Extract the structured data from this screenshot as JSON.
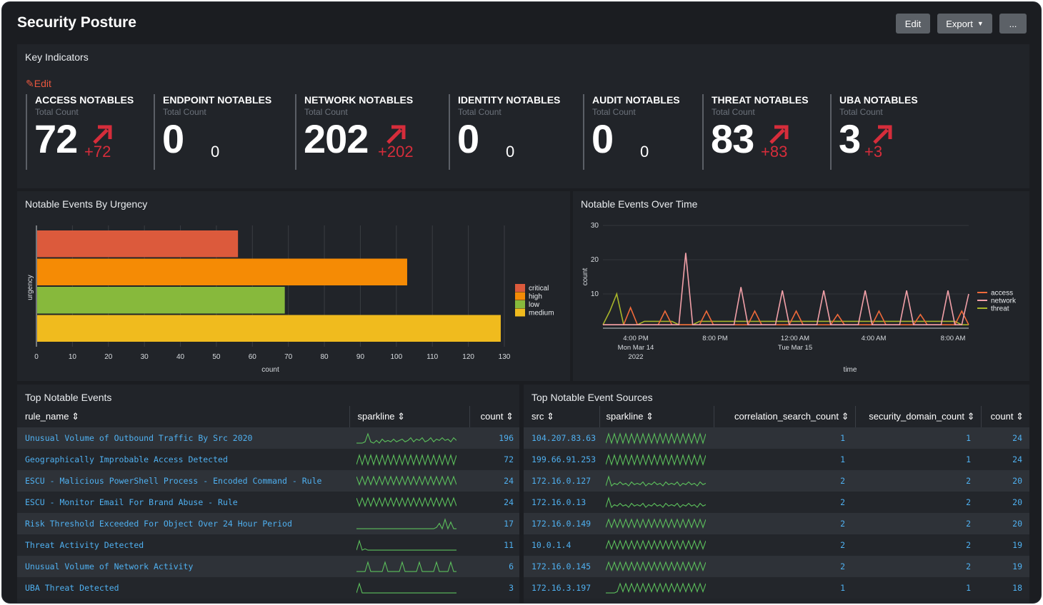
{
  "header": {
    "title": "Security Posture",
    "edit_label": "Edit",
    "export_label": "Export",
    "more_label": "..."
  },
  "key_indicators": {
    "title": "Key Indicators",
    "edit_label": "Edit",
    "items": [
      {
        "title": "ACCESS NOTABLES",
        "subtitle": "Total Count",
        "value": "72",
        "delta": "+72",
        "trend": "up"
      },
      {
        "title": "ENDPOINT NOTABLES",
        "subtitle": "Total Count",
        "value": "0",
        "delta": "0",
        "trend": "none"
      },
      {
        "title": "NETWORK NOTABLES",
        "subtitle": "Total Count",
        "value": "202",
        "delta": "+202",
        "trend": "up"
      },
      {
        "title": "IDENTITY NOTABLES",
        "subtitle": "Total Count",
        "value": "0",
        "delta": "0",
        "trend": "none"
      },
      {
        "title": "AUDIT NOTABLES",
        "subtitle": "Total Count",
        "value": "0",
        "delta": "0",
        "trend": "none"
      },
      {
        "title": "THREAT NOTABLES",
        "subtitle": "Total Count",
        "value": "83",
        "delta": "+83",
        "trend": "up"
      },
      {
        "title": "UBA NOTABLES",
        "subtitle": "Total Count",
        "value": "3",
        "delta": "+3",
        "trend": "up"
      }
    ],
    "colors": {
      "up": "#d62d3b"
    }
  },
  "urgency_panel": {
    "title": "Notable Events By Urgency"
  },
  "over_time_panel": {
    "title": "Notable Events Over Time"
  },
  "chart_data": [
    {
      "type": "bar",
      "orientation": "horizontal",
      "ylabel": "urgency",
      "xlabel": "count",
      "categories": [
        "critical",
        "high",
        "low",
        "medium"
      ],
      "values": [
        56,
        103,
        69,
        129
      ],
      "colors": [
        "#dc5a3c",
        "#f58b05",
        "#87b93c",
        "#f0bb1e"
      ],
      "xlim": [
        0,
        130
      ],
      "xticks": [
        0,
        10,
        20,
        30,
        40,
        50,
        60,
        70,
        80,
        90,
        100,
        110,
        120,
        130
      ],
      "legend": "right",
      "grid": true
    },
    {
      "type": "line",
      "xlabel": "time",
      "ylabel": "count",
      "ylim": [
        0,
        30
      ],
      "yticks": [
        10,
        20,
        30
      ],
      "x_tick_labels": [
        {
          "lines": [
            "4:00 PM",
            "Mon Mar 14",
            "2022"
          ]
        },
        {
          "lines": [
            "8:00 PM"
          ]
        },
        {
          "lines": [
            "12:00 AM",
            "Tue Mar 15"
          ]
        },
        {
          "lines": [
            "4:00 AM"
          ]
        },
        {
          "lines": [
            "8:00 AM"
          ]
        }
      ],
      "legend": "right",
      "series": [
        {
          "name": "access",
          "color": "#f06a3a",
          "values": [
            1,
            1,
            1,
            1,
            6,
            1,
            1,
            1,
            1,
            5,
            1,
            1,
            1,
            1,
            1,
            5,
            1,
            1,
            1,
            1,
            1,
            1,
            5,
            1,
            1,
            1,
            1,
            1,
            5,
            1,
            1,
            1,
            1,
            1,
            4,
            1,
            1,
            1,
            1,
            1,
            5,
            1,
            1,
            1,
            1,
            1,
            4,
            1,
            1,
            1,
            1,
            1,
            5,
            1
          ]
        },
        {
          "name": "network",
          "color": "#f2a0a8",
          "values": [
            1,
            1,
            1,
            1,
            1,
            1,
            1,
            1,
            1,
            1,
            1,
            1,
            22,
            1,
            1,
            1,
            1,
            1,
            1,
            1,
            12,
            1,
            1,
            1,
            1,
            1,
            11,
            1,
            1,
            1,
            1,
            1,
            11,
            1,
            1,
            1,
            1,
            1,
            11,
            1,
            1,
            1,
            1,
            1,
            11,
            1,
            1,
            1,
            1,
            1,
            11,
            1,
            1,
            10
          ]
        },
        {
          "name": "threat",
          "color": "#a8b52a",
          "values": [
            1,
            5,
            10,
            1,
            1,
            1,
            2,
            2,
            2,
            2,
            2,
            1,
            1,
            1,
            2,
            2,
            2,
            2,
            2,
            2,
            2,
            2,
            2,
            2,
            2,
            2,
            2,
            2,
            2,
            2,
            2,
            2,
            2,
            2,
            2,
            2,
            2,
            2,
            2,
            2,
            2,
            2,
            2,
            2,
            2,
            2,
            2,
            2,
            2,
            2,
            2,
            2,
            1,
            1
          ]
        }
      ]
    }
  ],
  "top_events": {
    "title": "Top Notable Events",
    "columns": [
      "rule_name",
      "sparkline",
      "count"
    ],
    "rows": [
      {
        "rule_name": "Unusual Volume of Outbound Traffic By Src 2020",
        "count": "196",
        "spark": [
          1,
          1,
          1,
          2,
          8,
          2,
          1,
          3,
          1,
          4,
          2,
          3,
          2,
          4,
          2,
          3,
          4,
          2,
          3,
          5,
          2,
          4,
          3,
          5,
          2,
          3,
          5,
          2,
          4,
          3,
          5,
          3,
          4,
          2,
          5,
          3
        ]
      },
      {
        "rule_name": "Geographically Improbable Access Detected",
        "count": "72",
        "spark": [
          1,
          8,
          1,
          8,
          1,
          8,
          1,
          8,
          1,
          8,
          1,
          8,
          1,
          8,
          1,
          8,
          1,
          8,
          1,
          8,
          1,
          8,
          1,
          8,
          1,
          8,
          1,
          8,
          1,
          8,
          1,
          8,
          1,
          8,
          1,
          8
        ]
      },
      {
        "rule_name": "ESCU - Malicious PowerShell Process - Encoded Command - Rule",
        "count": "24",
        "spark": [
          8,
          2,
          8,
          2,
          8,
          2,
          8,
          2,
          8,
          2,
          8,
          2,
          8,
          2,
          8,
          2,
          8,
          2,
          8,
          2,
          8,
          2,
          8,
          2,
          8,
          2,
          8,
          2,
          8,
          2,
          8,
          2,
          8,
          2,
          8,
          2
        ]
      },
      {
        "rule_name": "ESCU - Monitor Email For Brand Abuse - Rule",
        "count": "24",
        "spark": [
          8,
          2,
          8,
          2,
          8,
          2,
          8,
          2,
          8,
          2,
          8,
          2,
          8,
          2,
          8,
          2,
          8,
          2,
          8,
          2,
          8,
          2,
          8,
          2,
          8,
          2,
          8,
          2,
          8,
          2,
          8,
          2,
          8,
          2,
          8,
          2
        ]
      },
      {
        "rule_name": "Risk Threshold Exceeded For Object Over 24 Hour Period",
        "count": "17",
        "spark": [
          1,
          1,
          1,
          1,
          1,
          1,
          1,
          1,
          1,
          1,
          1,
          1,
          1,
          1,
          1,
          1,
          1,
          1,
          1,
          1,
          1,
          1,
          1,
          1,
          1,
          1,
          1,
          1,
          2,
          5,
          1,
          8,
          1,
          6,
          1,
          1
        ]
      },
      {
        "rule_name": "Threat Activity Detected",
        "count": "11",
        "spark": [
          1,
          8,
          1,
          2,
          1,
          1,
          1,
          1,
          1,
          1,
          1,
          1,
          1,
          1,
          1,
          1,
          1,
          1,
          1,
          1,
          1,
          1,
          1,
          1,
          1,
          1,
          1,
          1,
          1,
          1,
          1,
          1,
          1,
          1,
          1,
          1
        ]
      },
      {
        "rule_name": "Unusual Volume of Network Activity",
        "count": "6",
        "spark": [
          1,
          1,
          1,
          1,
          8,
          1,
          1,
          1,
          1,
          1,
          8,
          1,
          1,
          1,
          1,
          1,
          8,
          1,
          1,
          1,
          1,
          1,
          8,
          1,
          1,
          1,
          1,
          1,
          8,
          1,
          1,
          1,
          1,
          8,
          1,
          1
        ]
      },
      {
        "rule_name": "UBA Threat Detected",
        "count": "3",
        "spark": [
          1,
          8,
          1,
          1,
          1,
          1,
          1,
          1,
          1,
          1,
          1,
          1,
          1,
          1,
          1,
          1,
          1,
          1,
          1,
          1,
          1,
          1,
          1,
          1,
          1,
          1,
          1,
          1,
          1,
          1,
          1,
          1,
          1,
          1,
          1,
          1
        ]
      }
    ]
  },
  "top_sources": {
    "title": "Top Notable Event Sources",
    "columns": [
      "src",
      "sparkline",
      "correlation_search_count",
      "security_domain_count",
      "count"
    ],
    "rows": [
      {
        "src": "104.207.83.63",
        "csc": "1",
        "sdc": "1",
        "count": "24",
        "spark": [
          1,
          8,
          1,
          8,
          1,
          8,
          1,
          8,
          1,
          8,
          1,
          8,
          1,
          8,
          1,
          8,
          1,
          8,
          1,
          8,
          1,
          8,
          1,
          8,
          1,
          8,
          1,
          8,
          1,
          8,
          1,
          8,
          1,
          8,
          1,
          8
        ]
      },
      {
        "src": "199.66.91.253",
        "csc": "1",
        "sdc": "1",
        "count": "24",
        "spark": [
          1,
          8,
          1,
          8,
          1,
          8,
          1,
          8,
          1,
          8,
          1,
          8,
          1,
          8,
          1,
          8,
          1,
          8,
          1,
          8,
          1,
          8,
          1,
          8,
          1,
          8,
          1,
          8,
          1,
          8,
          1,
          8,
          1,
          8,
          1,
          8
        ]
      },
      {
        "src": "172.16.0.127",
        "csc": "2",
        "sdc": "2",
        "count": "20",
        "spark": [
          1,
          8,
          1,
          3,
          2,
          4,
          2,
          3,
          1,
          4,
          2,
          3,
          2,
          4,
          1,
          3,
          2,
          4,
          2,
          3,
          1,
          4,
          2,
          3,
          2,
          4,
          1,
          3,
          2,
          4,
          2,
          3,
          1,
          4,
          2,
          3
        ]
      },
      {
        "src": "172.16.0.13",
        "csc": "2",
        "sdc": "2",
        "count": "20",
        "spark": [
          1,
          8,
          1,
          3,
          2,
          4,
          2,
          3,
          1,
          4,
          2,
          3,
          2,
          4,
          1,
          3,
          2,
          4,
          2,
          3,
          1,
          4,
          2,
          3,
          2,
          4,
          1,
          3,
          2,
          4,
          2,
          3,
          1,
          4,
          2,
          3
        ]
      },
      {
        "src": "172.16.0.149",
        "csc": "2",
        "sdc": "2",
        "count": "20",
        "spark": [
          2,
          8,
          2,
          8,
          2,
          8,
          2,
          8,
          2,
          8,
          2,
          8,
          2,
          8,
          2,
          8,
          2,
          8,
          2,
          8,
          2,
          8,
          2,
          8,
          2,
          8,
          2,
          8,
          2,
          8,
          2,
          8,
          2,
          8,
          2,
          8
        ]
      },
      {
        "src": "10.0.1.4",
        "csc": "2",
        "sdc": "2",
        "count": "19",
        "spark": [
          2,
          8,
          2,
          8,
          2,
          8,
          2,
          8,
          2,
          8,
          2,
          8,
          2,
          8,
          2,
          8,
          2,
          8,
          2,
          8,
          2,
          8,
          2,
          8,
          2,
          8,
          2,
          8,
          2,
          8,
          2,
          8,
          2,
          8,
          2,
          8
        ]
      },
      {
        "src": "172.16.0.145",
        "csc": "2",
        "sdc": "2",
        "count": "19",
        "spark": [
          2,
          8,
          2,
          8,
          2,
          8,
          2,
          8,
          2,
          8,
          2,
          8,
          2,
          8,
          2,
          8,
          2,
          8,
          2,
          8,
          2,
          8,
          2,
          8,
          2,
          8,
          2,
          8,
          2,
          8,
          2,
          8,
          2,
          8,
          2,
          8
        ]
      },
      {
        "src": "172.16.3.197",
        "csc": "1",
        "sdc": "1",
        "count": "18",
        "spark": [
          1,
          1,
          1,
          1,
          2,
          8,
          2,
          8,
          2,
          8,
          2,
          8,
          2,
          8,
          2,
          8,
          2,
          8,
          2,
          8,
          2,
          8,
          2,
          8,
          2,
          8,
          2,
          8,
          2,
          8,
          2,
          8,
          2,
          8,
          2,
          8
        ]
      }
    ]
  },
  "spark_color": "#5cc05c"
}
